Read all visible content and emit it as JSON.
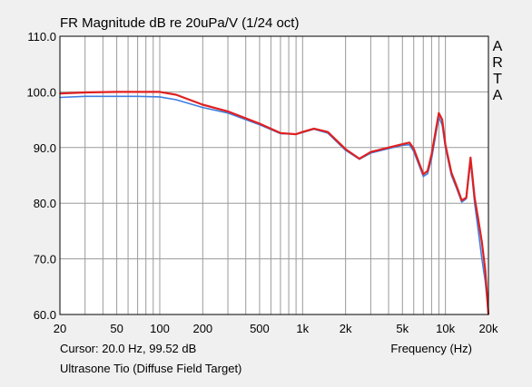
{
  "chart_data": {
    "type": "line",
    "title": "FR Magnitude dB re 20uPa/V (1/24 oct)",
    "xlabel": "Frequency (Hz)",
    "ylabel": "",
    "x_scale": "log",
    "xlim": [
      20,
      20000
    ],
    "ylim": [
      60,
      110
    ],
    "x_ticks": [
      "20",
      "50",
      "100",
      "200",
      "500",
      "1k",
      "2k",
      "5k",
      "10k",
      "20k"
    ],
    "y_ticks": [
      "110.0",
      "100.0",
      "90.0",
      "80.0",
      "70.0",
      "60.0"
    ],
    "grid": true,
    "watermark": "ARTA",
    "cursor_text": "Cursor: 20.0 Hz, 99.52 dB",
    "caption": "Ultrasone Tio (Diffuse Field Target)",
    "series": [
      {
        "color": "#3f7fe0",
        "x": [
          20,
          30,
          50,
          70,
          100,
          130,
          200,
          300,
          500,
          700,
          900,
          1000,
          1200,
          1500,
          2000,
          2500,
          3000,
          4000,
          5000,
          5600,
          6000,
          7000,
          7500,
          8000,
          9000,
          9500,
          10000,
          11000,
          12000,
          13000,
          14000,
          15000,
          16000,
          17000,
          18000,
          19000,
          20000
        ],
        "y": [
          99.0,
          99.2,
          99.2,
          99.2,
          99.1,
          98.6,
          97.2,
          96.2,
          94.1,
          92.5,
          92.4,
          92.7,
          93.3,
          92.6,
          89.5,
          87.9,
          89.0,
          89.8,
          90.4,
          90.5,
          89.3,
          84.8,
          85.3,
          88.0,
          95.5,
          94.0,
          90.0,
          85.0,
          82.6,
          80.2,
          80.8,
          87.5,
          80.0,
          75.0,
          70.0,
          66.0,
          60.0
        ]
      },
      {
        "color": "#e02020",
        "x": [
          20,
          30,
          50,
          70,
          100,
          130,
          200,
          300,
          500,
          700,
          900,
          1000,
          1200,
          1500,
          2000,
          2500,
          3000,
          4000,
          5000,
          5600,
          6000,
          7000,
          7500,
          8000,
          9000,
          9500,
          10000,
          11000,
          12000,
          13000,
          14000,
          15000,
          16000,
          17000,
          18000,
          19000,
          20000
        ],
        "y": [
          99.7,
          99.9,
          100.0,
          100.0,
          100.0,
          99.5,
          97.7,
          96.5,
          94.3,
          92.6,
          92.4,
          92.8,
          93.4,
          92.8,
          89.7,
          88.0,
          89.2,
          90.0,
          90.6,
          90.9,
          89.8,
          85.2,
          85.8,
          88.8,
          96.2,
          95.0,
          90.5,
          85.5,
          83.0,
          80.5,
          81.0,
          88.2,
          81.0,
          77.0,
          73.0,
          68.0,
          60.0
        ]
      }
    ]
  }
}
